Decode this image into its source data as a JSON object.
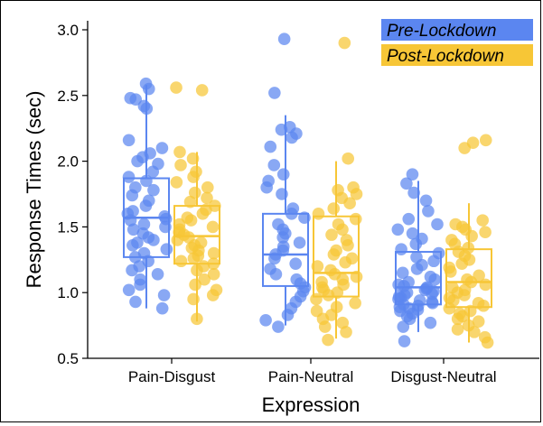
{
  "chart_data": {
    "type": "box",
    "xlabel": "Expression",
    "ylabel": "Response Times (sec)",
    "ylim": [
      0.5,
      3.05
    ],
    "yticks": [
      0.5,
      1.0,
      1.5,
      2.0,
      2.5,
      3.0
    ],
    "ytick_labels": [
      "0.5",
      "1.0",
      "1.5",
      "2.0",
      "2.5",
      "3.0"
    ],
    "categories": [
      "Pain-Disgust",
      "Pain-Neutral",
      "Disgust-Neutral"
    ],
    "legend_position": "top-right",
    "series": [
      {
        "name": "Pre-Lockdown",
        "color": "#5b86f0",
        "boxes": [
          {
            "min": 0.88,
            "q1": 1.27,
            "median": 1.57,
            "q3": 1.87,
            "max": 2.58
          },
          {
            "min": 0.75,
            "q1": 1.05,
            "median": 1.29,
            "q3": 1.6,
            "max": 2.35
          },
          {
            "min": 0.7,
            "q1": 0.91,
            "median": 1.04,
            "q3": 1.31,
            "max": 1.85
          }
        ],
        "points": [
          [
            2.59,
            2.55,
            2.48,
            2.47,
            2.42,
            2.4,
            2.16,
            2.1,
            2.06,
            2.03,
            2.0,
            1.98,
            1.92,
            1.88,
            1.85,
            1.8,
            1.78,
            1.74,
            1.7,
            1.66,
            1.62,
            1.6,
            1.58,
            1.56,
            1.55,
            1.52,
            1.5,
            1.48,
            1.45,
            1.42,
            1.4,
            1.38,
            1.36,
            1.33,
            1.3,
            1.27,
            1.24,
            1.2,
            1.17,
            1.14,
            1.1,
            1.06,
            1.02,
            0.98,
            0.93,
            0.88
          ],
          [
            2.93,
            2.52,
            2.26,
            2.24,
            2.21,
            2.18,
            2.11,
            1.97,
            1.9,
            1.85,
            1.8,
            1.75,
            1.64,
            1.6,
            1.57,
            1.52,
            1.48,
            1.45,
            1.42,
            1.38,
            1.35,
            1.32,
            1.29,
            1.26,
            1.22,
            1.18,
            1.14,
            1.1,
            1.07,
            1.04,
            1.01,
            0.97,
            0.93,
            0.88,
            0.83,
            0.79,
            0.74
          ],
          [
            1.9,
            1.83,
            1.76,
            1.7,
            1.62,
            1.56,
            1.52,
            1.48,
            1.45,
            1.41,
            1.37,
            1.33,
            1.3,
            1.27,
            1.24,
            1.21,
            1.18,
            1.15,
            1.12,
            1.1,
            1.08,
            1.06,
            1.05,
            1.04,
            1.03,
            1.02,
            1.01,
            1.0,
            0.99,
            0.98,
            0.97,
            0.96,
            0.95,
            0.94,
            0.93,
            0.92,
            0.91,
            0.9,
            0.89,
            0.88,
            0.87,
            0.86,
            0.84,
            0.82,
            0.8,
            0.77,
            0.74,
            0.63
          ]
        ]
      },
      {
        "name": "Post-Lockdown",
        "color": "#f7c636",
        "boxes": [
          {
            "min": 0.78,
            "q1": 1.22,
            "median": 1.43,
            "q3": 1.66,
            "max": 2.07
          },
          {
            "min": 0.65,
            "q1": 0.97,
            "median": 1.15,
            "q3": 1.58,
            "max": 2.0
          },
          {
            "min": 0.62,
            "q1": 0.89,
            "median": 1.08,
            "q3": 1.33,
            "max": 1.68
          }
        ],
        "points": [
          [
            2.56,
            2.54,
            2.07,
            2.02,
            1.97,
            1.92,
            1.88,
            1.84,
            1.8,
            1.76,
            1.72,
            1.69,
            1.66,
            1.63,
            1.6,
            1.57,
            1.55,
            1.52,
            1.5,
            1.48,
            1.46,
            1.44,
            1.42,
            1.4,
            1.38,
            1.36,
            1.34,
            1.32,
            1.3,
            1.28,
            1.26,
            1.24,
            1.22,
            1.2,
            1.17,
            1.14,
            1.1,
            1.06,
            1.02,
            0.98,
            0.95,
            0.8
          ],
          [
            2.9,
            2.02,
            1.8,
            1.78,
            1.75,
            1.72,
            1.68,
            1.64,
            1.6,
            1.56,
            1.52,
            1.48,
            1.44,
            1.4,
            1.36,
            1.32,
            1.29,
            1.26,
            1.23,
            1.2,
            1.17,
            1.14,
            1.12,
            1.1,
            1.08,
            1.06,
            1.04,
            1.02,
            1.0,
            0.98,
            0.95,
            0.92,
            0.89,
            0.86,
            0.83,
            0.8,
            0.77,
            0.74,
            0.7,
            0.64
          ],
          [
            2.16,
            2.14,
            2.1,
            1.55,
            1.52,
            1.5,
            1.48,
            1.46,
            1.43,
            1.4,
            1.37,
            1.34,
            1.31,
            1.28,
            1.25,
            1.22,
            1.19,
            1.16,
            1.13,
            1.1,
            1.08,
            1.06,
            1.04,
            1.02,
            1.0,
            0.98,
            0.96,
            0.94,
            0.92,
            0.9,
            0.88,
            0.86,
            0.84,
            0.82,
            0.8,
            0.78,
            0.75,
            0.72,
            0.7,
            0.66,
            0.62
          ]
        ]
      }
    ]
  }
}
